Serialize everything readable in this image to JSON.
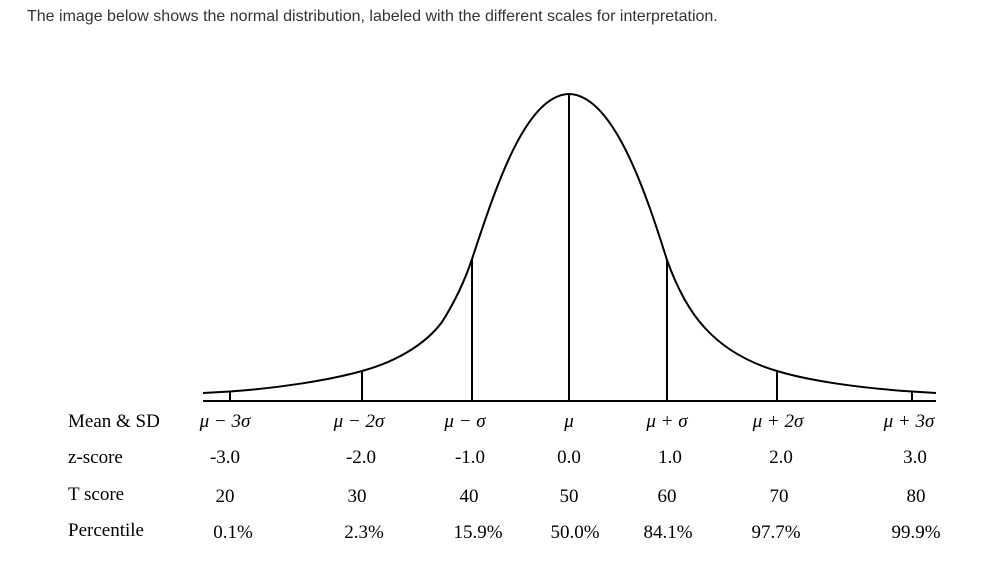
{
  "caption": "The image below shows the normal distribution, labeled with the different scales for interpretation.",
  "rows": {
    "mean_sd": {
      "label": "Mean & SD",
      "values": [
        "μ − 3σ",
        "μ − 2σ",
        "μ − σ",
        "μ",
        "μ + σ",
        "μ + 2σ",
        "μ + 3σ"
      ]
    },
    "z_score": {
      "label": "z-score",
      "values": [
        "-3.0",
        "-2.0",
        "-1.0",
        "0.0",
        "1.0",
        "2.0",
        "3.0"
      ]
    },
    "t_score": {
      "label": "T score",
      "values": [
        "20",
        "30",
        "40",
        "50",
        "60",
        "70",
        "80"
      ]
    },
    "percentile": {
      "label": "Percentile",
      "values": [
        "0.1%",
        "2.3%",
        "15.9%",
        "50.0%",
        "84.1%",
        "97.7%",
        "99.9%"
      ]
    }
  },
  "colors": {
    "curve": "#000000",
    "caption_text": "#333333",
    "table_text": "#000000"
  }
}
